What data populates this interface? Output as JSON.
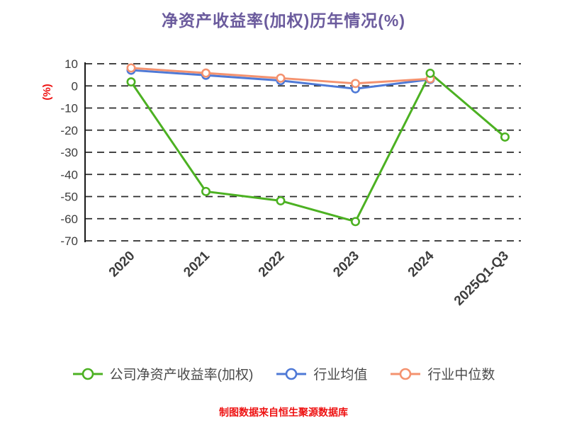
{
  "title": "净资产收益率(加权)历年情况(%)",
  "footer": "制图数据来自恒生聚源数据库",
  "colors": {
    "title": "#6b5b9d",
    "accent_red": "#ee1111",
    "grid": "#2b2b2b",
    "axis": "#1a1a1a",
    "tick_label": "#3d3d3d",
    "legend_label": "#4a4a4a",
    "series_green": "#4cb122",
    "series_blue": "#4e79d6",
    "series_orange": "#f4926f",
    "marker_fill": "#ffffff"
  },
  "chart_data": {
    "type": "line",
    "title": "净资产收益率(加权)历年情况(%)",
    "categories": [
      "2020",
      "2021",
      "2022",
      "2023",
      "2024",
      "2025Q1-Q3"
    ],
    "series": [
      {
        "name": "公司净资产收益率(加权)",
        "color": "#4cb122",
        "values": [
          1.8,
          -47.7,
          -51.9,
          -61.3,
          5.7,
          -23.1
        ]
      },
      {
        "name": "行业均值",
        "color": "#4e79d6",
        "values": [
          7.1,
          4.8,
          2.4,
          -1.3,
          2.9,
          null
        ]
      },
      {
        "name": "行业中位数",
        "color": "#f4926f",
        "values": [
          8.1,
          5.8,
          3.5,
          1.1,
          3.2,
          null
        ]
      }
    ],
    "xlabel": "",
    "ylabel": "(%)",
    "ylim": [
      -70,
      10
    ],
    "yticks": [
      10,
      0,
      -10,
      -20,
      -30,
      -40,
      -50,
      -60,
      -70
    ],
    "grid": "dashed-horizontal",
    "legend_position": "bottom",
    "marker": "circle-open",
    "source_note": "制图数据来自恒生聚源数据库"
  }
}
